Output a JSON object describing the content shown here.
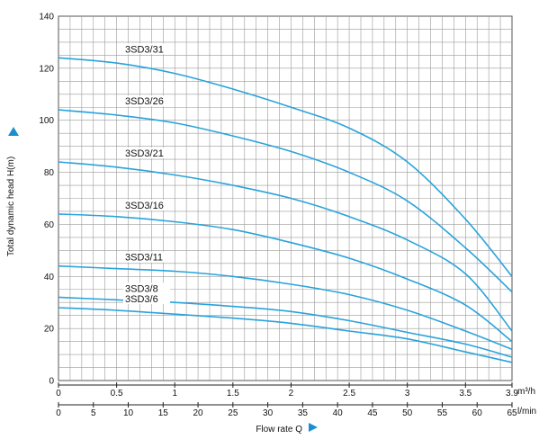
{
  "chart_data": {
    "type": "line",
    "ylabel": "Total dynamic head H(m)",
    "xlabel": "Flow rate Q",
    "ylim": [
      0,
      140
    ],
    "y_ticks": [
      "0",
      "20",
      "40",
      "60",
      "80",
      "100",
      "120",
      "140"
    ],
    "x_m3h": {
      "unit": "m³/h",
      "range": [
        0,
        3.9
      ],
      "ticks": [
        "0",
        "0.5",
        "1",
        "1.5",
        "2",
        "2.5",
        "3",
        "3.5",
        "3.9"
      ]
    },
    "x_lmin": {
      "unit": "l/min",
      "range": [
        0,
        65
      ],
      "ticks": [
        "0",
        "5",
        "10",
        "15",
        "20",
        "25",
        "30",
        "35",
        "40",
        "45",
        "50",
        "55",
        "60",
        "65"
      ]
    },
    "grid": true,
    "line_color": "#29a3dc",
    "series": [
      {
        "name": "3SD3/31",
        "x": [
          0,
          0.5,
          1,
          1.5,
          2,
          2.5,
          3,
          3.5,
          3.9
        ],
        "values": [
          124,
          122,
          118,
          112,
          105,
          97,
          84,
          62,
          40
        ]
      },
      {
        "name": "3SD3/26",
        "x": [
          0,
          0.5,
          1,
          1.5,
          2,
          2.5,
          3,
          3.5,
          3.9
        ],
        "values": [
          104,
          102,
          99,
          94,
          88,
          80,
          69,
          51,
          34
        ]
      },
      {
        "name": "3SD3/21",
        "x": [
          0,
          0.5,
          1,
          1.5,
          2,
          2.5,
          3,
          3.5,
          3.9
        ],
        "values": [
          84,
          82,
          79,
          75,
          70,
          63,
          54,
          41,
          19
        ]
      },
      {
        "name": "3SD3/16",
        "x": [
          0,
          0.5,
          1,
          1.5,
          2,
          2.5,
          3,
          3.5,
          3.9
        ],
        "values": [
          64,
          63,
          61,
          58,
          53,
          47,
          39,
          29,
          15
        ]
      },
      {
        "name": "3SD3/11",
        "x": [
          0,
          0.5,
          1,
          1.5,
          2,
          2.5,
          3,
          3.5,
          3.9
        ],
        "values": [
          44,
          43,
          42,
          40,
          37,
          33,
          27,
          19,
          12
        ]
      },
      {
        "name": "3SD3/8",
        "x": [
          0,
          0.5,
          1,
          1.5,
          2,
          2.5,
          3,
          3.5,
          3.9
        ],
        "values": [
          32,
          31,
          30,
          28.5,
          26.5,
          23,
          18.5,
          14,
          9
        ]
      },
      {
        "name": "3SD3/6",
        "x": [
          0,
          0.5,
          1,
          1.5,
          2,
          2.5,
          3,
          3.5,
          3.9
        ],
        "values": [
          28,
          27,
          25.5,
          24,
          22,
          19,
          16,
          11,
          7
        ]
      }
    ]
  }
}
